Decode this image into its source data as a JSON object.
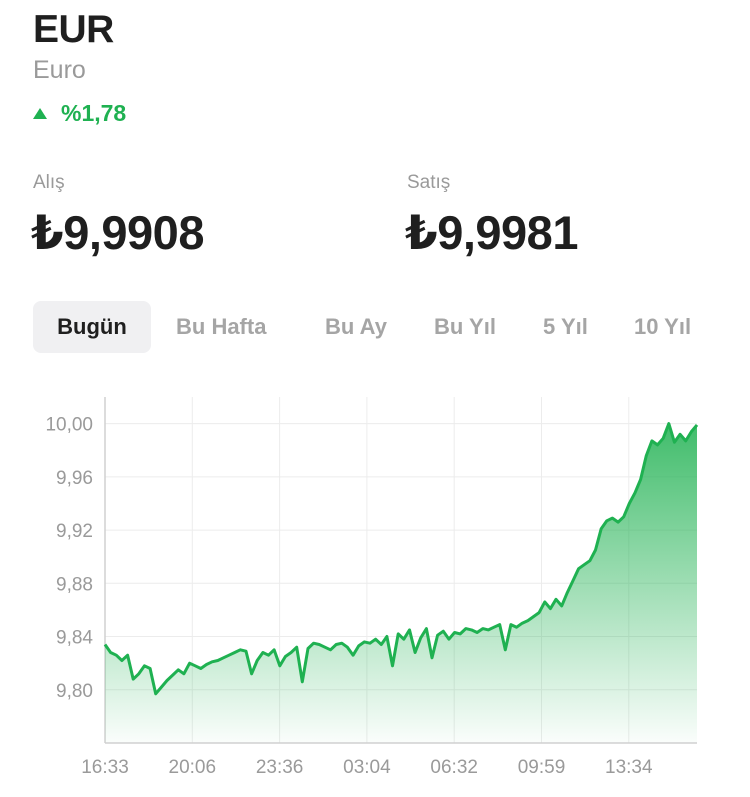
{
  "currency": {
    "code": "EUR",
    "name": "Euro"
  },
  "change": {
    "text": "%1,78",
    "direction": "up",
    "color": "#1fb151"
  },
  "quotes": {
    "buy": {
      "label": "Alış",
      "value": "₺9,9908"
    },
    "sell": {
      "label": "Satış",
      "value": "₺9,9981"
    }
  },
  "tabs": [
    {
      "label": "Bugün",
      "active": true
    },
    {
      "label": "Bu Hafta",
      "active": false
    },
    {
      "label": "Bu Ay",
      "active": false
    },
    {
      "label": "Bu Yıl",
      "active": false
    },
    {
      "label": "5 Yıl",
      "active": false
    },
    {
      "label": "10 Yıl",
      "active": false
    }
  ],
  "chart_data": {
    "type": "area",
    "ylim": [
      9.76,
      10.02
    ],
    "y_ticks": [
      "10,00",
      "9,96",
      "9,92",
      "9,88",
      "9,84",
      "9,80"
    ],
    "y_tick_values": [
      10.0,
      9.96,
      9.92,
      9.88,
      9.84,
      9.8
    ],
    "x_ticks": [
      "16:33",
      "20:06",
      "23:36",
      "03:04",
      "06:32",
      "09:59",
      "13:34"
    ],
    "series": [
      {
        "values": [
          9.834,
          9.828,
          9.826,
          9.822,
          9.826,
          9.808,
          9.812,
          9.818,
          9.816,
          9.797,
          9.802,
          9.807,
          9.811,
          9.815,
          9.812,
          9.82,
          9.818,
          9.816,
          9.819,
          9.821,
          9.822,
          9.824,
          9.826,
          9.828,
          9.83,
          9.829,
          9.812,
          9.822,
          9.828,
          9.826,
          9.83,
          9.818,
          9.825,
          9.828,
          9.832,
          9.806,
          9.831,
          9.835,
          9.834,
          9.832,
          9.83,
          9.834,
          9.835,
          9.832,
          9.826,
          9.833,
          9.836,
          9.835,
          9.838,
          9.834,
          9.84,
          9.818,
          9.842,
          9.838,
          9.845,
          9.828,
          9.839,
          9.846,
          9.824,
          9.841,
          9.844,
          9.838,
          9.843,
          9.842,
          9.846,
          9.845,
          9.843,
          9.846,
          9.845,
          9.847,
          9.849,
          9.83,
          9.849,
          9.847,
          9.85,
          9.852,
          9.855,
          9.858,
          9.866,
          9.861,
          9.868,
          9.863,
          9.873,
          9.882,
          9.891,
          9.894,
          9.897,
          9.905,
          9.921,
          9.927,
          9.929,
          9.926,
          9.93,
          9.94,
          9.948,
          9.958,
          9.976,
          9.987,
          9.984,
          9.989,
          10.0,
          9.986,
          9.992,
          9.987,
          9.994,
          9.999
        ]
      }
    ],
    "line_color": "#1fb151",
    "fill_color": "#1fb151",
    "grid": true
  }
}
